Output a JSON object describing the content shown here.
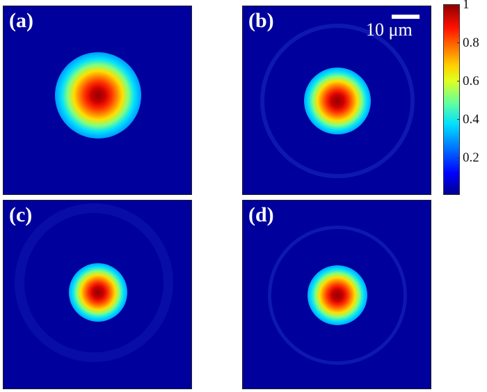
{
  "panels": [
    {
      "label": "(a)"
    },
    {
      "label": "(b)"
    },
    {
      "label": "(c)"
    },
    {
      "label": "(d)"
    }
  ],
  "scale_bar": {
    "text": "10 μm"
  },
  "colorbar": {
    "ticks": [
      "1",
      "0.8",
      "0.6",
      "0.4",
      "0.2"
    ],
    "colormap": "jet"
  },
  "colors": {
    "background": "#00009c",
    "peak": "#8f0000"
  }
}
